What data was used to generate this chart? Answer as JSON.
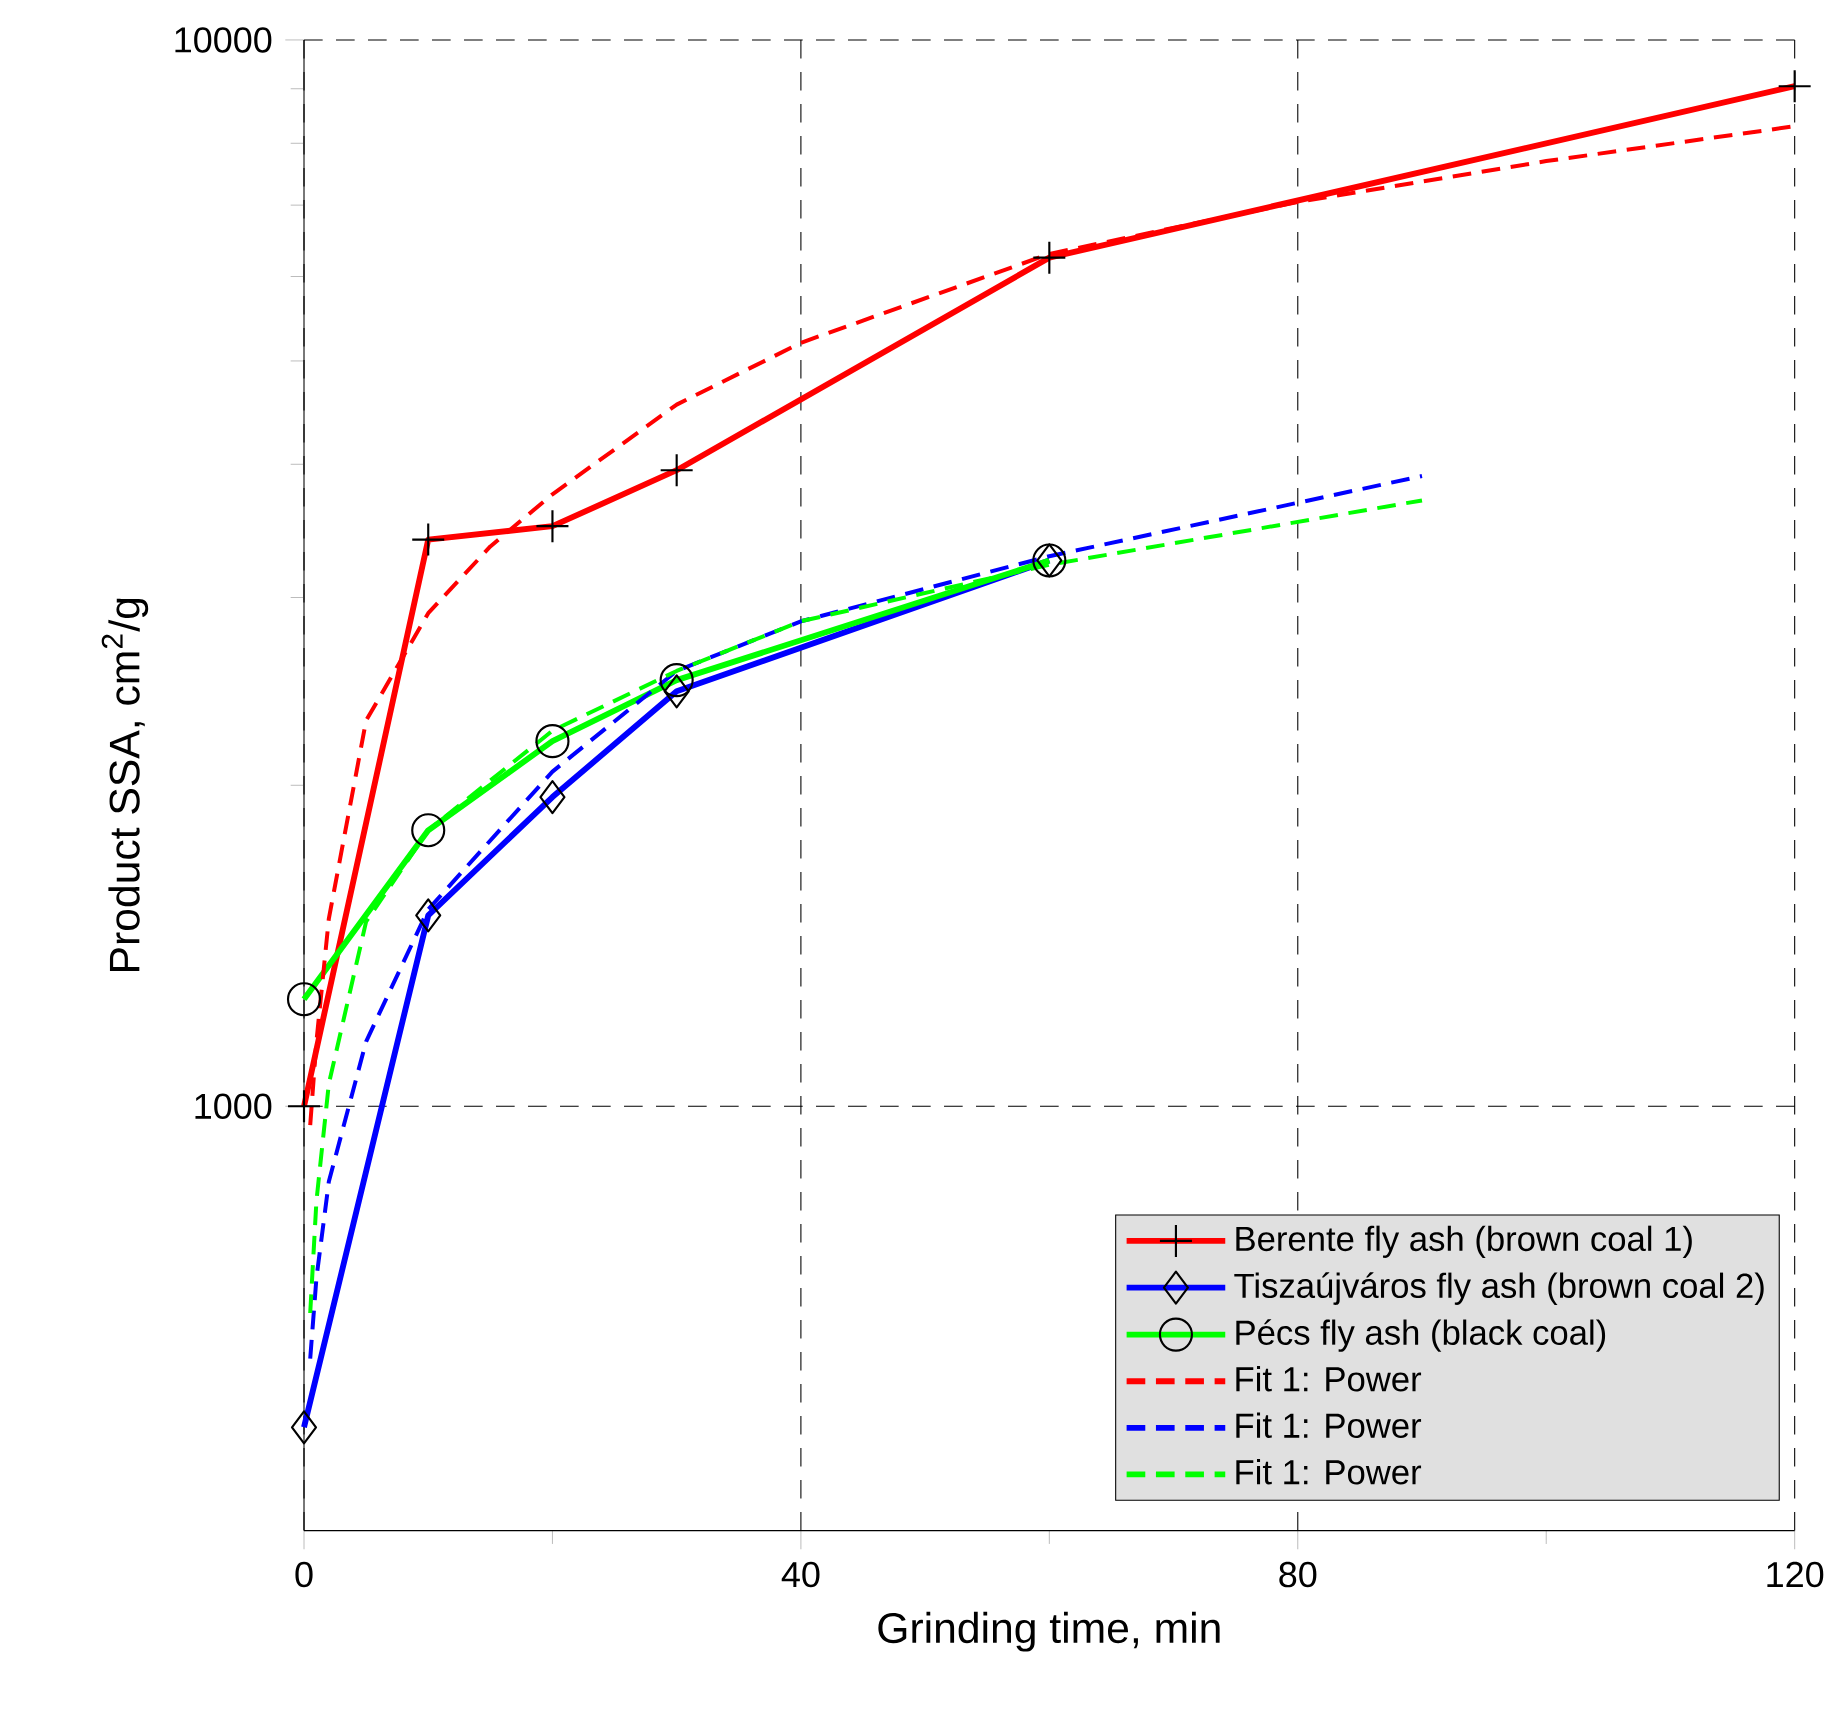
{
  "chart_data": {
    "type": "line",
    "xlabel": "Grinding time, min",
    "ylabel": "Product SSA, cm$^{2}$/g",
    "log": "y",
    "grid": true,
    "legend": "bottom right",
    "xlim": [
      0,
      120
    ],
    "ylim": [
      400,
      10000
    ],
    "xticks": [
      0,
      40,
      80,
      120
    ],
    "yticks": [
      1000,
      10000
    ],
    "series": [
      {
        "name": "Berente fly ash (brown coal 1)",
        "color": "#ff0000",
        "marker": "cross",
        "line_style": "solid",
        "x": [
          0,
          10,
          20,
          30,
          60,
          120
        ],
        "values": [
          1000,
          3400,
          3500,
          3950,
          6250,
          9050
        ]
      },
      {
        "name": "Tiszaújváros fly ash (brown coal 2)",
        "color": "#0000ff",
        "marker": "diamond",
        "line_style": "solid",
        "x": [
          0,
          10,
          20,
          30,
          60
        ],
        "values": [
          500,
          1510,
          1950,
          2450,
          3250
        ]
      },
      {
        "name": "Pécs fly ash (black coal)",
        "color": "#00ff00",
        "marker": "circle",
        "line_style": "solid",
        "x": [
          0,
          10,
          20,
          30,
          60
        ],
        "values": [
          1260,
          1815,
          2200,
          2510,
          3250
        ]
      },
      {
        "name": "Fit 1: Power",
        "color": "#ff0000",
        "marker": "none",
        "line_style": "dashed",
        "x": [
          0.5,
          1,
          2,
          5,
          10,
          15,
          20,
          30,
          40,
          60,
          80,
          100,
          120
        ],
        "values": [
          960,
          1150,
          1500,
          2300,
          2900,
          3350,
          3750,
          4550,
          5200,
          6300,
          7050,
          7700,
          8300
        ]
      },
      {
        "name": "Fit 1: Power",
        "color": "#0000ff",
        "marker": "none",
        "line_style": "dashed",
        "x": [
          0.5,
          1,
          2,
          5,
          10,
          20,
          30,
          40,
          60,
          90
        ],
        "values": [
          580,
          690,
          850,
          1150,
          1530,
          2060,
          2560,
          2850,
          3280,
          3900
        ]
      },
      {
        "name": "Fit 1: Power",
        "color": "#00ff00",
        "marker": "none",
        "line_style": "dashed",
        "x": [
          0.5,
          1,
          2,
          5,
          10,
          20,
          30,
          40,
          60,
          90
        ],
        "values": [
          640,
          815,
          1050,
          1490,
          1815,
          2250,
          2560,
          2850,
          3220,
          3700
        ]
      }
    ]
  }
}
